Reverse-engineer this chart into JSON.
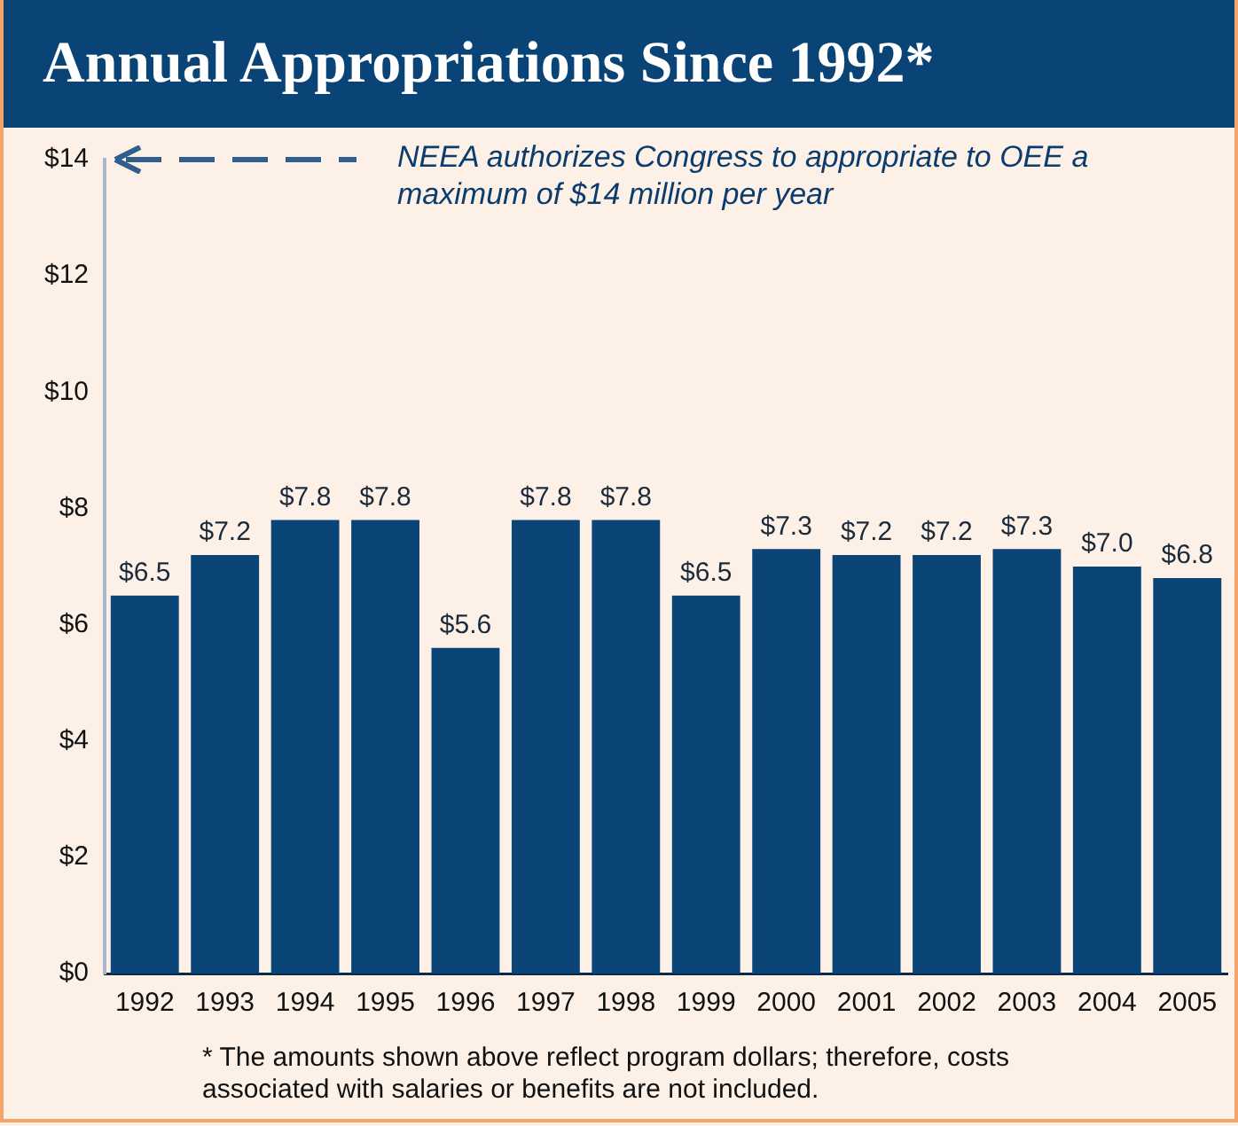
{
  "chart_data": {
    "type": "bar",
    "title": "Annual Appropriations Since 1992*",
    "categories": [
      "1992",
      "1993",
      "1994",
      "1995",
      "1996",
      "1997",
      "1998",
      "1999",
      "2000",
      "2001",
      "2002",
      "2003",
      "2004",
      "2005"
    ],
    "values": [
      6.5,
      7.2,
      7.8,
      7.8,
      5.6,
      7.8,
      7.8,
      6.5,
      7.3,
      7.2,
      7.2,
      7.3,
      7.0,
      6.8
    ],
    "value_labels": [
      "$6.5",
      "$7.2",
      "$7.8",
      "$7.8",
      "$5.6",
      "$7.8",
      "$7.8",
      "$6.5",
      "$7.3",
      "$7.2",
      "$7.2",
      "$7.3",
      "$7.0",
      "$6.8"
    ],
    "color": "#0b4577",
    "ylim": [
      0,
      14
    ],
    "yticks": [
      {
        "value": 0,
        "label": "$0"
      },
      {
        "value": 2,
        "label": "$2"
      },
      {
        "value": 4,
        "label": "$4"
      },
      {
        "value": 6,
        "label": "$6"
      },
      {
        "value": 8,
        "label": "$8"
      },
      {
        "value": 10,
        "label": "$10"
      },
      {
        "value": 12,
        "label": "$12"
      },
      {
        "value": 14,
        "label": "$14"
      }
    ],
    "grid": false,
    "legend": false,
    "annotations": [
      "NEEA authorizes Congress to appropriate to OEE a maximum of $14 million per year",
      "* The amounts shown above reflect program dollars; therefore, costs associated with salaries or benefits are not included."
    ]
  }
}
